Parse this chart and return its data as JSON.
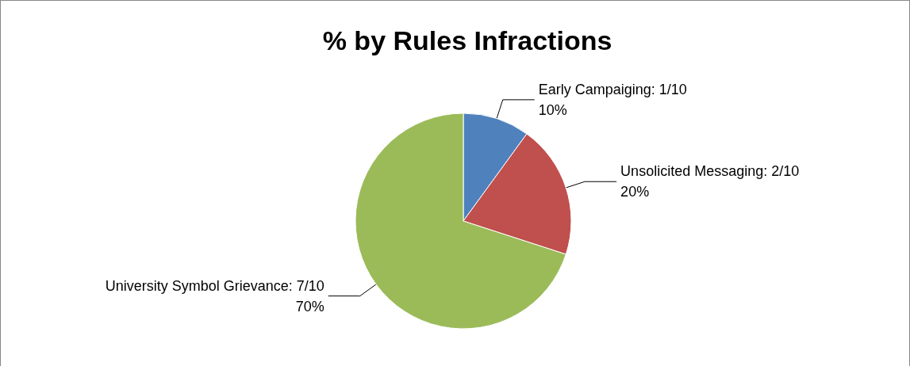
{
  "chart_data": {
    "type": "pie",
    "title": "% by Rules Infractions",
    "categories": [
      "Early Campaiging",
      "Unsolicited Messaging",
      "University Symbol Grievance"
    ],
    "values": [
      10,
      20,
      70
    ],
    "value_labels": [
      "1/10\n10%",
      "2/10\n20%",
      "7/10\n70%"
    ],
    "colors": [
      "#4f81bd",
      "#c0504d",
      "#9bbb59"
    ],
    "legend": false
  }
}
